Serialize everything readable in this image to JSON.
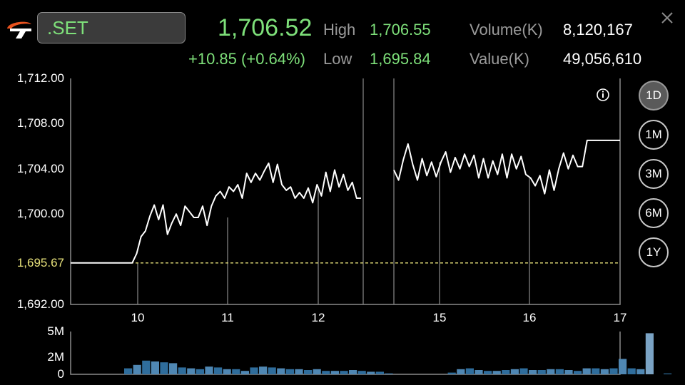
{
  "header": {
    "symbol": ".SET",
    "price": "1,706.52",
    "change": "+10.85 (+0.64%)",
    "high_label": "High",
    "high_value": "1,706.55",
    "low_label": "Low",
    "low_value": "1,695.84",
    "volume_label": "Volume(K)",
    "volume_value": "8,120,167",
    "value_label": "Value(K)",
    "value_value": "49,056,610"
  },
  "ranges": [
    "1D",
    "1M",
    "3M",
    "6M",
    "1Y"
  ],
  "active_range": "1D",
  "colors": {
    "up": "#7ee07a",
    "reference": "#e6e07a",
    "volume_bar": "#2f6d9c",
    "grid": "#8a8a8a"
  },
  "chart_data": [
    {
      "type": "line",
      "y_ticks": [
        "1,712.00",
        "1,708.00",
        "1,704.00",
        "1,700.00",
        "1,695.67",
        "1,692.00"
      ],
      "y_tick_values": [
        1712,
        1708,
        1704,
        1700,
        1695.67,
        1692
      ],
      "x_ticks": [
        "10",
        "11",
        "12",
        "15",
        "16",
        "17"
      ],
      "ylim": [
        1692,
        1712
      ],
      "reference_line": 1695.67,
      "series": [
        {
          "values": [
            1695.67,
            1695.67,
            1695.67,
            1695.67,
            1695.67,
            1695.67,
            1695.67,
            1695.67,
            1695.67,
            1695.67,
            1695.67,
            1695.67,
            1695.67,
            1695.67,
            1695.67,
            1696.5,
            1698,
            1698.5,
            1699.8,
            1700.8,
            1699.5,
            1700.8,
            1698.2,
            1699.2,
            1700,
            1699,
            1700.7,
            1700.2,
            1699.7,
            1699.7,
            1700.7,
            1699,
            1700.7,
            1701.6,
            1702,
            1701.4,
            1702.4,
            1702,
            1702.6,
            1701.4,
            1703.6,
            1702.8,
            1703.6,
            1703,
            1703.8,
            1704.5,
            1702.8,
            1704.4,
            1702.6,
            1702.1,
            1702.4,
            1701.4,
            1701.9,
            1701.4,
            1702.3,
            1701,
            1702.6,
            1701.6,
            1703.7,
            1702,
            1703.9,
            1702.4,
            1703.5,
            1702.1,
            1702.8,
            1701.4,
            1701.4
          ]
        },
        {
          "values": [
            1703.9,
            1703,
            1704.8,
            1706.2,
            1704.4,
            1703,
            1704.9,
            1703.4,
            1704.6,
            1703.3,
            1704.6,
            1705.5,
            1703.7,
            1705,
            1704,
            1705.3,
            1704.2,
            1705.2,
            1703.2,
            1704.9,
            1703.2,
            1704.7,
            1703.5,
            1705.3,
            1703.2,
            1705.3,
            1704,
            1705.1,
            1703.5,
            1703.2,
            1702.5,
            1703.4,
            1701.8,
            1703.9,
            1702.1,
            1704,
            1705.4,
            1704,
            1705.2,
            1704.2,
            1704.2,
            1706.52,
            1706.52,
            1706.52,
            1706.52,
            1706.52,
            1706.52,
            1706.52,
            1706.52
          ]
        }
      ]
    },
    {
      "type": "bar",
      "y_ticks": [
        "5M",
        "2M",
        "0"
      ],
      "y_tick_values": [
        5,
        2,
        0
      ],
      "ylim": [
        0,
        5
      ],
      "unit": "M",
      "values": [
        0.7,
        1.1,
        1.6,
        1.5,
        1.4,
        1.3,
        0.8,
        0.7,
        0.6,
        0.9,
        0.8,
        0.6,
        0.6,
        0.4,
        0.8,
        0.9,
        0.8,
        0.7,
        0.6,
        0.6,
        0.5,
        0.6,
        0.4,
        0.4,
        0.4,
        0.5,
        0.4,
        0.3,
        0.3,
        0.1,
        0,
        0,
        0,
        0,
        0,
        0,
        0.2,
        0.6,
        0.7,
        0.5,
        0.4,
        0.4,
        0.5,
        0.6,
        0.7,
        0.5,
        0.5,
        0.6,
        0.6,
        0.5,
        0.4,
        0.7,
        0.7,
        0.6,
        0.7,
        1.8,
        0.7,
        0.6,
        4.8,
        0,
        0.1
      ]
    }
  ]
}
